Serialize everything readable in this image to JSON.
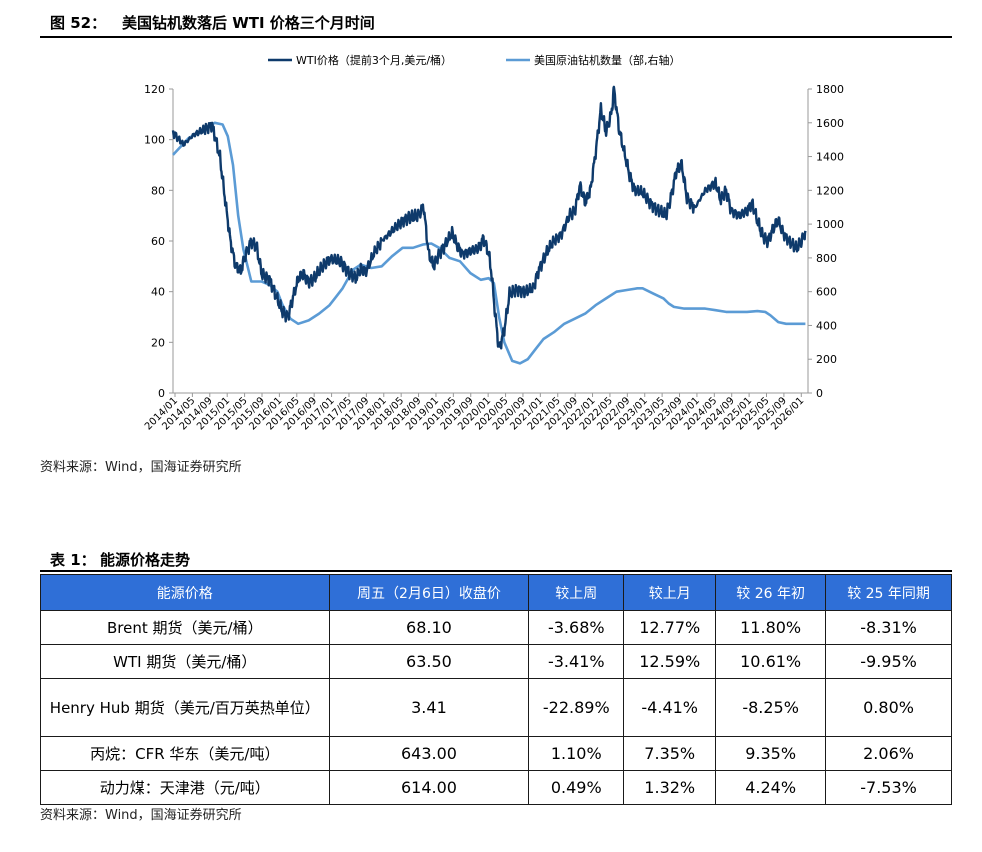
{
  "figure": {
    "label": "图 52：",
    "title": "美国钻机数落后 WTI 价格三个月时间"
  },
  "chart_data": {
    "type": "line",
    "legend": [
      "WTI价格（提前3个月,美元/桶）",
      "美国原油钻机数量（部,右轴）"
    ],
    "x_ticks": [
      "2014/01",
      "2014/05",
      "2014/09",
      "2015/01",
      "2015/05",
      "2015/09",
      "2016/01",
      "2016/05",
      "2016/09",
      "2017/01",
      "2017/05",
      "2017/09",
      "2018/01",
      "2018/05",
      "2018/09",
      "2019/01",
      "2019/05",
      "2019/09",
      "2020/01",
      "2020/05",
      "2020/09",
      "2021/01",
      "2021/05",
      "2021/09",
      "2022/01",
      "2022/05",
      "2022/09",
      "2023/01",
      "2023/05",
      "2023/09",
      "2024/01",
      "2024/05",
      "2024/09",
      "2025/01",
      "2025/05",
      "2025/09",
      "2026/01"
    ],
    "y_left_ticks": [
      "0",
      "20",
      "40",
      "60",
      "80",
      "100",
      "120"
    ],
    "y_right_ticks": [
      "0",
      "200",
      "400",
      "600",
      "800",
      "1000",
      "1200",
      "1400",
      "1600",
      "1800"
    ],
    "ylim_left": [
      0,
      120
    ],
    "ylim_right": [
      0,
      1800
    ],
    "series": [
      {
        "name": "WTI价格（提前3个月,美元/桶）",
        "axis": "left",
        "color": "#0E3A6B",
        "points": [
          [
            2014.0,
            103
          ],
          [
            2014.2,
            98
          ],
          [
            2014.4,
            102
          ],
          [
            2014.6,
            104
          ],
          [
            2014.75,
            106
          ],
          [
            2014.9,
            93
          ],
          [
            2015.0,
            76
          ],
          [
            2015.1,
            60
          ],
          [
            2015.2,
            50
          ],
          [
            2015.3,
            48
          ],
          [
            2015.4,
            55
          ],
          [
            2015.5,
            60
          ],
          [
            2015.6,
            58
          ],
          [
            2015.7,
            47
          ],
          [
            2015.85,
            45
          ],
          [
            2016.0,
            37
          ],
          [
            2016.1,
            32
          ],
          [
            2016.2,
            30
          ],
          [
            2016.3,
            38
          ],
          [
            2016.4,
            45
          ],
          [
            2016.5,
            47
          ],
          [
            2016.6,
            44
          ],
          [
            2016.7,
            45
          ],
          [
            2016.8,
            48
          ],
          [
            2016.9,
            51
          ],
          [
            2017.0,
            53
          ],
          [
            2017.2,
            52
          ],
          [
            2017.4,
            47
          ],
          [
            2017.5,
            45
          ],
          [
            2017.6,
            49
          ],
          [
            2017.7,
            48
          ],
          [
            2017.85,
            55
          ],
          [
            2018.0,
            60
          ],
          [
            2018.2,
            64
          ],
          [
            2018.4,
            68
          ],
          [
            2018.5,
            69
          ],
          [
            2018.7,
            70
          ],
          [
            2018.8,
            74
          ],
          [
            2018.9,
            55
          ],
          [
            2019.0,
            50
          ],
          [
            2019.1,
            55
          ],
          [
            2019.2,
            58
          ],
          [
            2019.35,
            63
          ],
          [
            2019.45,
            58
          ],
          [
            2019.55,
            55
          ],
          [
            2019.7,
            56
          ],
          [
            2019.85,
            57
          ],
          [
            2019.95,
            61
          ],
          [
            2020.05,
            55
          ],
          [
            2020.1,
            48
          ],
          [
            2020.18,
            30
          ],
          [
            2020.25,
            17
          ],
          [
            2020.35,
            25
          ],
          [
            2020.45,
            39
          ],
          [
            2020.6,
            41
          ],
          [
            2020.75,
            40
          ],
          [
            2020.9,
            41
          ],
          [
            2021.0,
            48
          ],
          [
            2021.15,
            55
          ],
          [
            2021.3,
            60
          ],
          [
            2021.45,
            63
          ],
          [
            2021.6,
            70
          ],
          [
            2021.7,
            72
          ],
          [
            2021.8,
            82
          ],
          [
            2021.9,
            75
          ],
          [
            2022.0,
            80
          ],
          [
            2022.1,
            95
          ],
          [
            2022.2,
            112
          ],
          [
            2022.3,
            103
          ],
          [
            2022.4,
            110
          ],
          [
            2022.45,
            120
          ],
          [
            2022.55,
            104
          ],
          [
            2022.65,
            95
          ],
          [
            2022.75,
            86
          ],
          [
            2022.85,
            80
          ],
          [
            2023.0,
            79
          ],
          [
            2023.15,
            75
          ],
          [
            2023.3,
            72
          ],
          [
            2023.45,
            70
          ],
          [
            2023.55,
            78
          ],
          [
            2023.65,
            88
          ],
          [
            2023.75,
            90
          ],
          [
            2023.85,
            77
          ],
          [
            2024.0,
            73
          ],
          [
            2024.2,
            80
          ],
          [
            2024.4,
            83
          ],
          [
            2024.5,
            76
          ],
          [
            2024.6,
            80
          ],
          [
            2024.7,
            72
          ],
          [
            2024.85,
            70
          ],
          [
            2025.0,
            72
          ],
          [
            2025.1,
            75
          ],
          [
            2025.2,
            68
          ],
          [
            2025.3,
            62
          ],
          [
            2025.4,
            60
          ],
          [
            2025.5,
            65
          ],
          [
            2025.6,
            68
          ],
          [
            2025.7,
            63
          ],
          [
            2025.85,
            59
          ],
          [
            2025.95,
            57
          ],
          [
            2026.05,
            60
          ],
          [
            2026.12,
            64
          ]
        ]
      },
      {
        "name": "美国原油钻机数量（部,右轴）",
        "axis": "right",
        "color": "#5B9BD5",
        "points": [
          [
            2014.0,
            1410
          ],
          [
            2014.3,
            1510
          ],
          [
            2014.6,
            1560
          ],
          [
            2014.8,
            1600
          ],
          [
            2014.95,
            1590
          ],
          [
            2015.05,
            1520
          ],
          [
            2015.15,
            1350
          ],
          [
            2015.25,
            1050
          ],
          [
            2015.35,
            850
          ],
          [
            2015.5,
            660
          ],
          [
            2015.7,
            660
          ],
          [
            2015.85,
            640
          ],
          [
            2016.0,
            600
          ],
          [
            2016.1,
            520
          ],
          [
            2016.25,
            440
          ],
          [
            2016.4,
            410
          ],
          [
            2016.6,
            430
          ],
          [
            2016.8,
            470
          ],
          [
            2017.0,
            520
          ],
          [
            2017.1,
            560
          ],
          [
            2017.25,
            620
          ],
          [
            2017.45,
            730
          ],
          [
            2017.6,
            760
          ],
          [
            2017.8,
            740
          ],
          [
            2018.0,
            750
          ],
          [
            2018.2,
            810
          ],
          [
            2018.4,
            860
          ],
          [
            2018.6,
            860
          ],
          [
            2018.8,
            880
          ],
          [
            2018.95,
            885
          ],
          [
            2019.1,
            860
          ],
          [
            2019.3,
            800
          ],
          [
            2019.5,
            780
          ],
          [
            2019.7,
            710
          ],
          [
            2019.9,
            670
          ],
          [
            2020.05,
            680
          ],
          [
            2020.15,
            650
          ],
          [
            2020.25,
            450
          ],
          [
            2020.35,
            300
          ],
          [
            2020.5,
            190
          ],
          [
            2020.65,
            175
          ],
          [
            2020.8,
            200
          ],
          [
            2020.95,
            260
          ],
          [
            2021.1,
            320
          ],
          [
            2021.3,
            360
          ],
          [
            2021.5,
            410
          ],
          [
            2021.7,
            440
          ],
          [
            2021.9,
            470
          ],
          [
            2022.1,
            520
          ],
          [
            2022.3,
            560
          ],
          [
            2022.5,
            600
          ],
          [
            2022.7,
            610
          ],
          [
            2022.9,
            620
          ],
          [
            2023.0,
            620
          ],
          [
            2023.2,
            590
          ],
          [
            2023.4,
            560
          ],
          [
            2023.5,
            530
          ],
          [
            2023.6,
            510
          ],
          [
            2023.8,
            500
          ],
          [
            2024.0,
            500
          ],
          [
            2024.2,
            500
          ],
          [
            2024.4,
            490
          ],
          [
            2024.6,
            480
          ],
          [
            2024.8,
            480
          ],
          [
            2025.0,
            480
          ],
          [
            2025.2,
            485
          ],
          [
            2025.35,
            480
          ],
          [
            2025.45,
            460
          ],
          [
            2025.6,
            420
          ],
          [
            2025.75,
            410
          ],
          [
            2025.9,
            410
          ],
          [
            2026.0,
            410
          ],
          [
            2026.12,
            410
          ]
        ]
      }
    ]
  },
  "figure_source": "资料来源：Wind，国海证券研究所",
  "table": {
    "label": "表 1：",
    "title": "能源价格走势",
    "headers": [
      "能源价格",
      "周五（2月6日）收盘价",
      "较上周",
      "较上月",
      "较 26 年初",
      "较 25 年同期"
    ],
    "rows": [
      [
        "Brent 期货（美元/桶）",
        "68.10",
        "-3.68%",
        "12.77%",
        "11.80%",
        "-8.31%"
      ],
      [
        "WTI 期货（美元/桶）",
        "63.50",
        "-3.41%",
        "12.59%",
        "10.61%",
        "-9.95%"
      ],
      [
        "Henry Hub 期货（美元/百万英热单位）",
        "3.41",
        "-22.89%",
        "-4.41%",
        "-8.25%",
        "0.80%"
      ],
      [
        "丙烷：CFR 华东（美元/吨）",
        "643.00",
        "1.10%",
        "7.35%",
        "9.35%",
        "2.06%"
      ],
      [
        "动力煤：天津港（元/吨）",
        "614.00",
        "0.49%",
        "1.32%",
        "4.24%",
        "-7.53%"
      ]
    ],
    "source": "资料来源：Wind，国海证券研究所"
  }
}
